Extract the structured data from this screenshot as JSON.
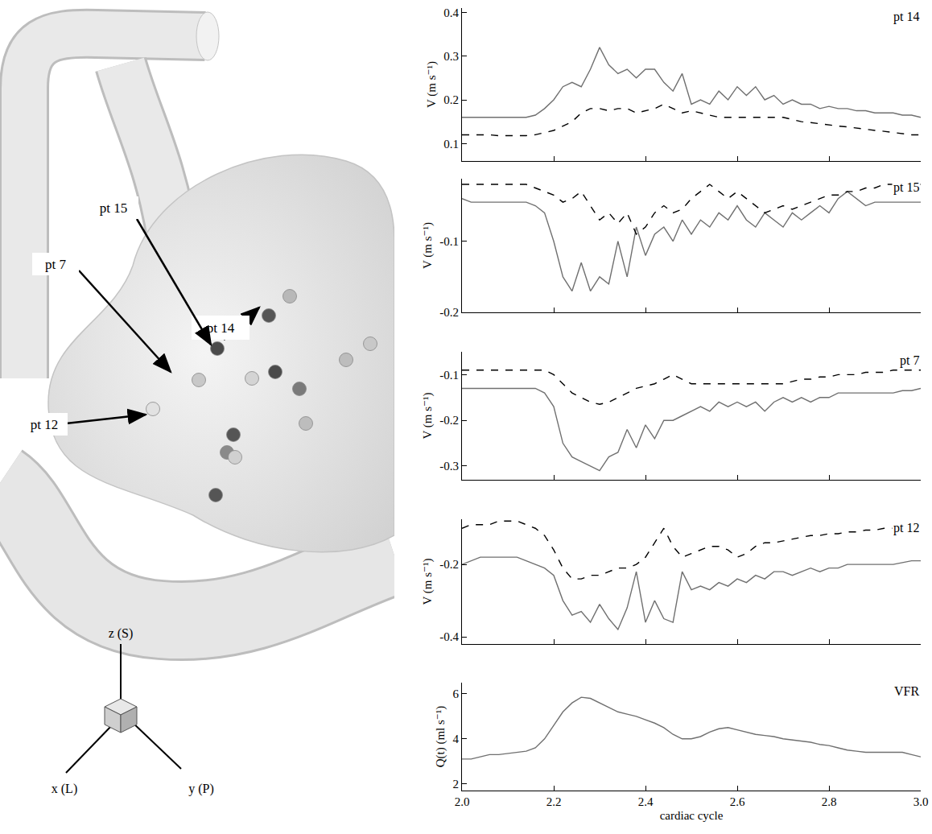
{
  "chart_data": [
    {
      "type": "line",
      "annotations": [
        "pt 14"
      ],
      "y_label": "V (m s⁻¹)",
      "grid": false,
      "tick_labels": "y",
      "x": [
        2,
        2.02,
        2.04,
        2.06,
        2.08,
        2.1,
        2.12,
        2.14,
        2.16,
        2.18,
        2.2,
        2.22,
        2.24,
        2.26,
        2.28,
        2.3,
        2.32,
        2.34,
        2.36,
        2.38,
        2.4,
        2.42,
        2.44,
        2.46,
        2.48,
        2.5,
        2.52,
        2.54,
        2.56,
        2.58,
        2.6,
        2.62,
        2.64,
        2.66,
        2.68,
        2.7,
        2.72,
        2.74,
        2.76,
        2.78,
        2.8,
        2.82,
        2.84,
        2.86,
        2.88,
        2.9,
        2.92,
        2.94,
        2.96,
        2.98,
        3
      ],
      "xlim": [
        2,
        3
      ],
      "xticks": [
        {
          "value": 2,
          "label": "2.0"
        },
        2.2,
        2.4,
        2.6,
        2.8,
        {
          "value": 3,
          "label": "3.0"
        }
      ],
      "ylim": [
        0.06,
        0.41
      ],
      "yticks": [
        0.1,
        0.2,
        0.3,
        0.4
      ],
      "series": [
        {
          "color": "#707070",
          "line_style": "solid",
          "values": [
            0.16,
            0.16,
            0.16,
            0.16,
            0.16,
            0.16,
            0.16,
            0.16,
            0.165,
            0.18,
            0.2,
            0.23,
            0.24,
            0.23,
            0.27,
            0.32,
            0.28,
            0.26,
            0.27,
            0.25,
            0.27,
            0.27,
            0.24,
            0.22,
            0.26,
            0.19,
            0.2,
            0.19,
            0.22,
            0.2,
            0.23,
            0.21,
            0.23,
            0.2,
            0.21,
            0.19,
            0.2,
            0.19,
            0.19,
            0.18,
            0.185,
            0.18,
            0.18,
            0.175,
            0.175,
            0.17,
            0.17,
            0.17,
            0.165,
            0.165,
            0.16
          ]
        },
        {
          "color": "#000000",
          "line_style": "dashed",
          "values": [
            0.12,
            0.12,
            0.12,
            0.12,
            0.118,
            0.118,
            0.118,
            0.118,
            0.12,
            0.125,
            0.13,
            0.14,
            0.15,
            0.17,
            0.18,
            0.18,
            0.175,
            0.18,
            0.18,
            0.17,
            0.175,
            0.18,
            0.19,
            0.18,
            0.17,
            0.175,
            0.17,
            0.165,
            0.16,
            0.16,
            0.16,
            0.16,
            0.16,
            0.16,
            0.16,
            0.16,
            0.155,
            0.15,
            0.148,
            0.145,
            0.143,
            0.14,
            0.138,
            0.135,
            0.132,
            0.13,
            0.128,
            0.125,
            0.122,
            0.12,
            0.12
          ]
        }
      ]
    },
    {
      "type": "line",
      "annotations": [
        "pt 15"
      ],
      "y_label": "V (m s⁻¹)",
      "grid": false,
      "tick_labels": "y",
      "x": [
        2,
        2.02,
        2.04,
        2.06,
        2.08,
        2.1,
        2.12,
        2.14,
        2.16,
        2.18,
        2.2,
        2.22,
        2.24,
        2.26,
        2.28,
        2.3,
        2.32,
        2.34,
        2.36,
        2.38,
        2.4,
        2.42,
        2.44,
        2.46,
        2.48,
        2.5,
        2.52,
        2.54,
        2.56,
        2.58,
        2.6,
        2.62,
        2.64,
        2.66,
        2.68,
        2.7,
        2.72,
        2.74,
        2.76,
        2.78,
        2.8,
        2.82,
        2.84,
        2.86,
        2.88,
        2.9,
        2.92,
        2.94,
        2.96,
        2.98,
        3
      ],
      "xlim": [
        2,
        3
      ],
      "xticks": [
        {
          "value": 2,
          "label": "2.0"
        },
        2.2,
        2.4,
        2.6,
        2.8,
        {
          "value": 3,
          "label": "3.0"
        }
      ],
      "ylim": [
        -0.2,
        -0.012
      ],
      "yticks": [
        -0.2,
        -0.1
      ],
      "series": [
        {
          "color": "#707070",
          "line_style": "solid",
          "values": [
            -0.04,
            -0.045,
            -0.045,
            -0.045,
            -0.045,
            -0.045,
            -0.045,
            -0.045,
            -0.05,
            -0.06,
            -0.1,
            -0.15,
            -0.17,
            -0.13,
            -0.17,
            -0.15,
            -0.16,
            -0.1,
            -0.15,
            -0.08,
            -0.12,
            -0.09,
            -0.08,
            -0.1,
            -0.07,
            -0.09,
            -0.07,
            -0.08,
            -0.06,
            -0.07,
            -0.05,
            -0.07,
            -0.08,
            -0.06,
            -0.07,
            -0.08,
            -0.06,
            -0.07,
            -0.06,
            -0.05,
            -0.06,
            -0.04,
            -0.03,
            -0.04,
            -0.05,
            -0.045,
            -0.045,
            -0.045,
            -0.045,
            -0.045,
            -0.045
          ]
        },
        {
          "color": "#000000",
          "line_style": "dashed",
          "values": [
            -0.02,
            -0.02,
            -0.02,
            -0.02,
            -0.02,
            -0.02,
            -0.02,
            -0.02,
            -0.025,
            -0.03,
            -0.035,
            -0.045,
            -0.04,
            -0.03,
            -0.05,
            -0.07,
            -0.06,
            -0.075,
            -0.06,
            -0.09,
            -0.08,
            -0.06,
            -0.05,
            -0.06,
            -0.055,
            -0.04,
            -0.03,
            -0.02,
            -0.03,
            -0.04,
            -0.03,
            -0.04,
            -0.05,
            -0.06,
            -0.055,
            -0.05,
            -0.055,
            -0.05,
            -0.045,
            -0.04,
            -0.035,
            -0.035,
            -0.03,
            -0.03,
            -0.025,
            -0.025,
            -0.02,
            -0.02,
            -0.02,
            -0.02,
            -0.02
          ]
        }
      ]
    },
    {
      "type": "line",
      "annotations": [
        "pt 7"
      ],
      "y_label": "V (m s⁻¹)",
      "grid": false,
      "tick_labels": "y",
      "x": [
        2,
        2.02,
        2.04,
        2.06,
        2.08,
        2.1,
        2.12,
        2.14,
        2.16,
        2.18,
        2.2,
        2.22,
        2.24,
        2.26,
        2.28,
        2.3,
        2.32,
        2.34,
        2.36,
        2.38,
        2.4,
        2.42,
        2.44,
        2.46,
        2.48,
        2.5,
        2.52,
        2.54,
        2.56,
        2.58,
        2.6,
        2.62,
        2.64,
        2.66,
        2.68,
        2.7,
        2.72,
        2.74,
        2.76,
        2.78,
        2.8,
        2.82,
        2.84,
        2.86,
        2.88,
        2.9,
        2.92,
        2.94,
        2.96,
        2.98,
        3
      ],
      "xlim": [
        2,
        3
      ],
      "xticks": [
        {
          "value": 2,
          "label": "2.0"
        },
        2.2,
        2.4,
        2.6,
        2.8,
        {
          "value": 3,
          "label": "3.0"
        }
      ],
      "ylim": [
        -0.33,
        -0.05
      ],
      "yticks": [
        -0.3,
        -0.2,
        -0.1
      ],
      "series": [
        {
          "color": "#707070",
          "line_style": "solid",
          "values": [
            -0.13,
            -0.13,
            -0.13,
            -0.13,
            -0.13,
            -0.13,
            -0.13,
            -0.13,
            -0.13,
            -0.14,
            -0.17,
            -0.25,
            -0.28,
            -0.29,
            -0.3,
            -0.31,
            -0.28,
            -0.27,
            -0.22,
            -0.26,
            -0.21,
            -0.24,
            -0.2,
            -0.2,
            -0.19,
            -0.18,
            -0.17,
            -0.18,
            -0.16,
            -0.17,
            -0.16,
            -0.17,
            -0.16,
            -0.18,
            -0.16,
            -0.15,
            -0.16,
            -0.15,
            -0.16,
            -0.15,
            -0.15,
            -0.14,
            -0.14,
            -0.14,
            -0.14,
            -0.14,
            -0.14,
            -0.14,
            -0.135,
            -0.135,
            -0.13
          ]
        },
        {
          "color": "#000000",
          "line_style": "dashed",
          "values": [
            -0.09,
            -0.09,
            -0.09,
            -0.09,
            -0.09,
            -0.09,
            -0.09,
            -0.09,
            -0.09,
            -0.09,
            -0.1,
            -0.12,
            -0.14,
            -0.15,
            -0.16,
            -0.165,
            -0.16,
            -0.15,
            -0.14,
            -0.13,
            -0.125,
            -0.12,
            -0.11,
            -0.1,
            -0.11,
            -0.12,
            -0.12,
            -0.12,
            -0.12,
            -0.12,
            -0.12,
            -0.12,
            -0.12,
            -0.12,
            -0.12,
            -0.12,
            -0.115,
            -0.11,
            -0.11,
            -0.105,
            -0.105,
            -0.1,
            -0.1,
            -0.1,
            -0.095,
            -0.095,
            -0.095,
            -0.09,
            -0.09,
            -0.09,
            -0.09
          ]
        }
      ]
    },
    {
      "type": "line",
      "annotations": [
        "pt 12"
      ],
      "y_label": "V (m s⁻¹)",
      "grid": false,
      "tick_labels": "y",
      "x": [
        2,
        2.02,
        2.04,
        2.06,
        2.08,
        2.1,
        2.12,
        2.14,
        2.16,
        2.18,
        2.2,
        2.22,
        2.24,
        2.26,
        2.28,
        2.3,
        2.32,
        2.34,
        2.36,
        2.38,
        2.4,
        2.42,
        2.44,
        2.46,
        2.48,
        2.5,
        2.52,
        2.54,
        2.56,
        2.58,
        2.6,
        2.62,
        2.64,
        2.66,
        2.68,
        2.7,
        2.72,
        2.74,
        2.76,
        2.78,
        2.8,
        2.82,
        2.84,
        2.86,
        2.88,
        2.9,
        2.92,
        2.94,
        2.96,
        2.98,
        3
      ],
      "xlim": [
        2,
        3
      ],
      "xticks": [
        {
          "value": 2,
          "label": "2.0"
        },
        2.2,
        2.4,
        2.6,
        2.8,
        {
          "value": 3,
          "label": "3.0"
        }
      ],
      "ylim": [
        -0.42,
        -0.075
      ],
      "yticks": [
        -0.4,
        -0.2
      ],
      "series": [
        {
          "color": "#707070",
          "line_style": "solid",
          "values": [
            -0.2,
            -0.19,
            -0.18,
            -0.18,
            -0.18,
            -0.18,
            -0.18,
            -0.19,
            -0.2,
            -0.21,
            -0.23,
            -0.3,
            -0.34,
            -0.33,
            -0.36,
            -0.31,
            -0.35,
            -0.38,
            -0.32,
            -0.22,
            -0.36,
            -0.3,
            -0.35,
            -0.36,
            -0.22,
            -0.27,
            -0.26,
            -0.27,
            -0.25,
            -0.26,
            -0.24,
            -0.25,
            -0.23,
            -0.24,
            -0.22,
            -0.22,
            -0.23,
            -0.22,
            -0.21,
            -0.22,
            -0.21,
            -0.21,
            -0.2,
            -0.2,
            -0.2,
            -0.2,
            -0.2,
            -0.2,
            -0.195,
            -0.19,
            -0.19
          ]
        },
        {
          "color": "#000000",
          "line_style": "dashed",
          "values": [
            -0.1,
            -0.09,
            -0.09,
            -0.09,
            -0.08,
            -0.08,
            -0.08,
            -0.09,
            -0.1,
            -0.12,
            -0.16,
            -0.21,
            -0.24,
            -0.24,
            -0.23,
            -0.23,
            -0.22,
            -0.21,
            -0.21,
            -0.2,
            -0.18,
            -0.14,
            -0.1,
            -0.15,
            -0.18,
            -0.17,
            -0.16,
            -0.15,
            -0.15,
            -0.16,
            -0.18,
            -0.17,
            -0.15,
            -0.14,
            -0.14,
            -0.135,
            -0.13,
            -0.125,
            -0.12,
            -0.12,
            -0.115,
            -0.115,
            -0.11,
            -0.11,
            -0.105,
            -0.105,
            -0.1,
            -0.1,
            -0.1,
            -0.1,
            -0.1
          ]
        }
      ]
    },
    {
      "type": "line",
      "annotations": [
        "VFR"
      ],
      "y_label": "Q(t) (ml s⁻¹)",
      "x_label": "cardiac cycle",
      "grid": false,
      "x": [
        2,
        2.02,
        2.04,
        2.06,
        2.08,
        2.1,
        2.12,
        2.14,
        2.16,
        2.18,
        2.2,
        2.22,
        2.24,
        2.26,
        2.28,
        2.3,
        2.32,
        2.34,
        2.36,
        2.38,
        2.4,
        2.42,
        2.44,
        2.46,
        2.48,
        2.5,
        2.52,
        2.54,
        2.56,
        2.58,
        2.6,
        2.62,
        2.64,
        2.66,
        2.68,
        2.7,
        2.72,
        2.74,
        2.76,
        2.78,
        2.8,
        2.82,
        2.84,
        2.86,
        2.88,
        2.9,
        2.92,
        2.94,
        2.96,
        2.98,
        3
      ],
      "xlim": [
        2,
        3
      ],
      "xticks": [
        {
          "value": 2,
          "label": "2.0"
        },
        2.2,
        2.4,
        2.6,
        2.8,
        {
          "value": 3,
          "label": "3.0"
        }
      ],
      "ylim": [
        1.7,
        6.5
      ],
      "yticks": [
        2,
        4,
        6
      ],
      "series": [
        {
          "color": "#707070",
          "line_style": "solid",
          "values": [
            3.1,
            3.1,
            3.2,
            3.3,
            3.3,
            3.35,
            3.4,
            3.45,
            3.6,
            4.0,
            4.6,
            5.2,
            5.6,
            5.85,
            5.8,
            5.6,
            5.4,
            5.2,
            5.1,
            5.0,
            4.85,
            4.7,
            4.5,
            4.2,
            4.0,
            4.0,
            4.1,
            4.3,
            4.45,
            4.5,
            4.4,
            4.3,
            4.2,
            4.15,
            4.1,
            4.0,
            3.95,
            3.9,
            3.85,
            3.75,
            3.7,
            3.6,
            3.5,
            3.45,
            3.4,
            3.4,
            3.4,
            3.4,
            3.4,
            3.3,
            3.2
          ]
        }
      ]
    }
  ],
  "illustration": {
    "points": [
      "pt 14",
      "pt 15",
      "pt 7",
      "pt 12"
    ],
    "axes": [
      "z (S)",
      "x (L)",
      "y (P)"
    ]
  }
}
